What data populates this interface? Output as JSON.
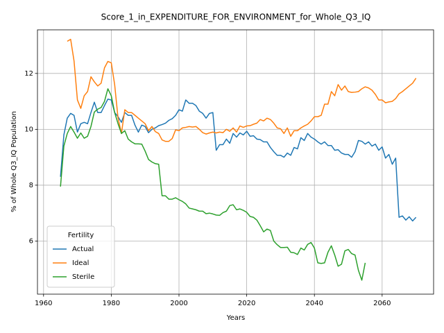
{
  "chart_data": {
    "type": "line",
    "title": "Score_1_in_EXPENDITURE_FOR_ENVIRONMENT_for_Whole_Q3_IQ",
    "xlabel": "Years",
    "ylabel": "% of Whole Q3_IQ Population",
    "x": [
      1965,
      1966,
      1967,
      1968,
      1969,
      1970,
      1971,
      1972,
      1973,
      1974,
      1975,
      1976,
      1977,
      1978,
      1979,
      1980,
      1981,
      1982,
      1983,
      1984,
      1985,
      1986,
      1987,
      1988,
      1989,
      1990,
      1991,
      1992,
      1993,
      1994,
      1995,
      1996,
      1997,
      1998,
      1999,
      2000,
      2001,
      2002,
      2003,
      2004,
      2005,
      2006,
      2007,
      2008,
      2009,
      2010,
      2011,
      2012,
      2013,
      2014,
      2015,
      2016,
      2017,
      2018,
      2019,
      2020,
      2021,
      2022,
      2023,
      2024,
      2025,
      2026,
      2027,
      2028,
      2029,
      2030,
      2031,
      2032,
      2033,
      2034,
      2035,
      2036,
      2037,
      2038,
      2039,
      2040,
      2041,
      2042,
      2043,
      2044,
      2045,
      2046,
      2047,
      2048,
      2049,
      2050,
      2051,
      2052,
      2053,
      2054,
      2055,
      2056,
      2057,
      2058,
      2059,
      2060,
      2061,
      2062,
      2063,
      2064,
      2065,
      2066,
      2067,
      2068,
      2069,
      2070
    ],
    "series": [
      {
        "name": "Actual",
        "color": "#1f77b4",
        "values": [
          8.3,
          9.8,
          10.4,
          10.57,
          10.5,
          9.9,
          10.2,
          10.25,
          10.2,
          10.6,
          10.97,
          10.6,
          10.6,
          10.85,
          11.08,
          11.05,
          10.6,
          10.45,
          10.25,
          10.6,
          10.5,
          10.5,
          10.15,
          9.9,
          10.15,
          10.1,
          9.88,
          10.0,
          10.05,
          10.13,
          10.17,
          10.22,
          10.32,
          10.38,
          10.5,
          10.7,
          10.65,
          11.05,
          10.93,
          10.93,
          10.85,
          10.65,
          10.57,
          10.4,
          10.57,
          10.6,
          9.25,
          9.45,
          9.45,
          9.65,
          9.5,
          9.85,
          9.72,
          9.87,
          9.8,
          9.93,
          9.75,
          9.77,
          9.65,
          9.63,
          9.55,
          9.55,
          9.35,
          9.2,
          9.07,
          9.07,
          9.0,
          9.15,
          9.07,
          9.35,
          9.3,
          9.7,
          9.6,
          9.85,
          9.72,
          9.65,
          9.55,
          9.47,
          9.55,
          9.42,
          9.42,
          9.25,
          9.27,
          9.15,
          9.1,
          9.1,
          9.0,
          9.2,
          9.6,
          9.57,
          9.47,
          9.55,
          9.4,
          9.47,
          9.25,
          9.37,
          8.97,
          9.1,
          8.75,
          8.97,
          6.85,
          6.9,
          6.75,
          6.87,
          6.72,
          6.85
        ]
      },
      {
        "name": "Ideal",
        "color": "#ff7f0e",
        "values": [
          null,
          null,
          13.15,
          13.22,
          12.45,
          11.05,
          10.75,
          11.2,
          11.35,
          11.88,
          11.7,
          11.55,
          11.65,
          12.2,
          12.43,
          12.38,
          11.6,
          10.4,
          9.85,
          10.7,
          10.6,
          10.6,
          10.5,
          10.4,
          10.3,
          10.2,
          9.95,
          10.1,
          9.92,
          9.85,
          9.62,
          9.57,
          9.57,
          9.67,
          9.98,
          9.95,
          10.05,
          10.07,
          10.1,
          10.08,
          10.1,
          10.0,
          9.88,
          9.83,
          9.87,
          9.9,
          9.87,
          9.9,
          9.88,
          10.0,
          9.93,
          10.05,
          9.9,
          10.12,
          10.07,
          10.12,
          10.13,
          10.18,
          10.22,
          10.35,
          10.3,
          10.4,
          10.35,
          10.22,
          10.05,
          10.02,
          9.85,
          10.05,
          9.75,
          9.95,
          9.95,
          10.05,
          10.12,
          10.18,
          10.3,
          10.45,
          10.45,
          10.5,
          10.9,
          10.9,
          11.35,
          11.2,
          11.6,
          11.4,
          11.55,
          11.35,
          11.32,
          11.33,
          11.35,
          11.45,
          11.52,
          11.48,
          11.4,
          11.25,
          11.05,
          11.05,
          10.95,
          10.98,
          11.0,
          11.1,
          11.27,
          11.35,
          11.45,
          11.55,
          11.65,
          11.83
        ]
      },
      {
        "name": "Sterile",
        "color": "#2ca02c",
        "values": [
          7.95,
          9.4,
          9.85,
          10.1,
          9.9,
          9.68,
          9.87,
          9.68,
          9.75,
          10.1,
          10.62,
          10.72,
          10.78,
          11.0,
          11.45,
          11.2,
          10.6,
          10.2,
          9.85,
          9.95,
          9.65,
          9.55,
          9.48,
          9.48,
          9.47,
          9.22,
          8.92,
          8.83,
          8.77,
          8.75,
          7.62,
          7.62,
          7.5,
          7.5,
          7.55,
          7.48,
          7.42,
          7.33,
          7.18,
          7.15,
          7.12,
          7.07,
          7.07,
          6.98,
          7.0,
          6.97,
          6.93,
          6.92,
          7.02,
          7.07,
          7.27,
          7.3,
          7.12,
          7.15,
          7.1,
          7.03,
          6.88,
          6.85,
          6.75,
          6.55,
          6.33,
          6.43,
          6.38,
          6.0,
          5.87,
          5.77,
          5.77,
          5.78,
          5.6,
          5.58,
          5.52,
          5.75,
          5.68,
          5.88,
          5.95,
          5.75,
          5.22,
          5.2,
          5.22,
          5.6,
          5.83,
          5.5,
          5.1,
          5.17,
          5.65,
          5.7,
          5.55,
          5.5,
          4.95,
          4.6,
          5.22,
          null,
          null,
          null,
          null,
          null,
          null,
          null,
          null,
          null,
          null,
          null,
          null,
          null,
          null,
          null
        ]
      }
    ],
    "xlim": [
      1958.2,
      2075.2
    ],
    "xticks": [
      1960,
      1980,
      2000,
      2020,
      2040,
      2060
    ],
    "ylim": [
      4.1,
      13.56
    ],
    "yticks": [
      6,
      8,
      10,
      12
    ],
    "grid": true,
    "legend_title": "Fertility",
    "legend_loc": "lower left"
  }
}
